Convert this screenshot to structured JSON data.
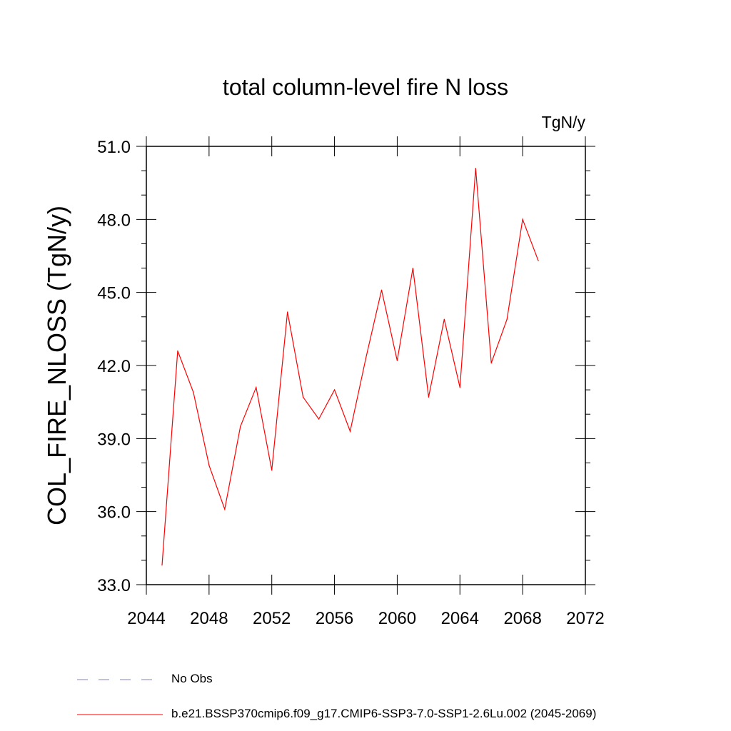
{
  "chart_data": {
    "type": "line",
    "title": "total column-level fire N loss",
    "units_label": "TgN/y",
    "ylabel": "COL_FIRE_NLOSS  (TgN/y)",
    "xlabel": "",
    "xlim": [
      2044,
      2072
    ],
    "ylim": [
      33.0,
      51.0
    ],
    "x_ticks": [
      2044,
      2048,
      2052,
      2056,
      2060,
      2064,
      2068,
      2072
    ],
    "x_tick_labels": [
      "2044",
      "2048",
      "2052",
      "2056",
      "2060",
      "2064",
      "2068",
      "2072"
    ],
    "y_ticks": [
      33,
      36,
      39,
      42,
      45,
      48,
      51
    ],
    "y_tick_labels": [
      "33.0",
      "36.0",
      "39.0",
      "42.0",
      "45.0",
      "48.0",
      "51.0"
    ],
    "grid": false,
    "legend_position": "bottom",
    "series": [
      {
        "name": "b.e21.BSSP370cmip6.f09_g17.CMIP6-SSP3-7.0-SSP1-2.6Lu.002 (2045-2069)",
        "color": "#ff0000",
        "style": "solid",
        "x": [
          2045,
          2046,
          2047,
          2048,
          2049,
          2050,
          2051,
          2052,
          2053,
          2054,
          2055,
          2056,
          2057,
          2058,
          2059,
          2060,
          2061,
          2062,
          2063,
          2064,
          2065,
          2066,
          2067,
          2068,
          2069
        ],
        "y": [
          33.8,
          42.6,
          40.9,
          37.9,
          36.1,
          39.5,
          41.1,
          37.7,
          44.2,
          40.7,
          39.8,
          41.0,
          39.3,
          42.3,
          45.1,
          42.2,
          46.0,
          40.7,
          43.9,
          41.1,
          50.1,
          42.1,
          43.9,
          48.0,
          46.3
        ]
      }
    ],
    "legend": [
      {
        "label": "No Obs",
        "color": "#8080c0",
        "style": "dashed"
      },
      {
        "label": "b.e21.BSSP370cmip6.f09_g17.CMIP6-SSP3-7.0-SSP1-2.6Lu.002 (2045-2069)",
        "color": "#ff0000",
        "style": "solid"
      }
    ]
  }
}
